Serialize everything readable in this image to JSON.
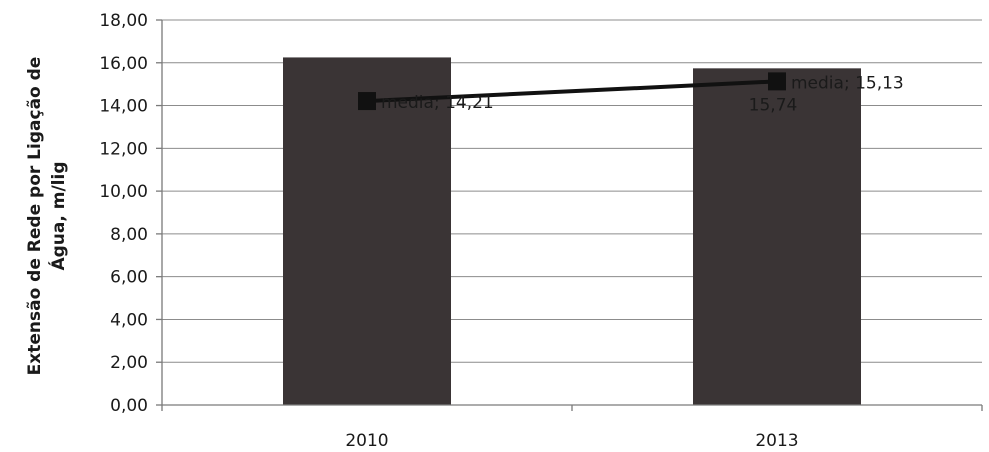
{
  "chart_data": {
    "type": "bar",
    "categories": [
      "2010",
      "2013"
    ],
    "series": [
      {
        "kind": "bar",
        "values": [
          16.25,
          15.74
        ],
        "value_labels": [
          "",
          "15,74"
        ],
        "color": "#3a3435"
      },
      {
        "kind": "line",
        "name": "media",
        "values": [
          14.21,
          15.13
        ],
        "value_labels": [
          "media; 14,21",
          "media; 15,13"
        ],
        "color": "#111111"
      }
    ],
    "ylabel_lines": [
      "Extensão de Rede por Ligação de",
      "Água, m/lig"
    ],
    "xlabel": "",
    "ylim": [
      0,
      18
    ],
    "yticks": [
      "0,00",
      "2,00",
      "4,00",
      "6,00",
      "8,00",
      "10,00",
      "12,00",
      "14,00",
      "16,00",
      "18,00"
    ],
    "ytick_values": [
      0,
      2,
      4,
      6,
      8,
      10,
      12,
      14,
      16,
      18
    ],
    "grid": true,
    "legend": "none"
  }
}
